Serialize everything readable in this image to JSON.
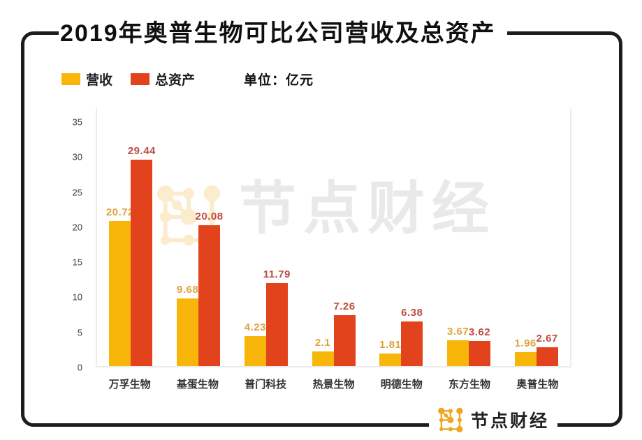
{
  "title": "2019年奥普生物可比公司营收及总资产",
  "unit_label": "单位：亿元",
  "legend": [
    {
      "label": "营收",
      "color": "#F8B60A"
    },
    {
      "label": "总资产",
      "color": "#E2431C"
    }
  ],
  "chart_data": {
    "type": "bar",
    "title": "2019年奥普生物可比公司营收及总资产",
    "unit": "亿元",
    "categories": [
      "万孚生物",
      "基蛋生物",
      "普门科技",
      "热景生物",
      "明德生物",
      "东方生物",
      "奥普生物"
    ],
    "series": [
      {
        "name": "营收",
        "key": "revenue",
        "color": "#F8B60A",
        "label_color": "#DFA33C",
        "values": [
          20.72,
          9.68,
          4.23,
          2.1,
          1.81,
          3.67,
          1.96
        ]
      },
      {
        "name": "总资产",
        "key": "total-assets",
        "color": "#E2431C",
        "label_color": "#C04B41",
        "values": [
          29.44,
          20.08,
          11.79,
          7.26,
          6.38,
          3.62,
          2.67
        ]
      }
    ],
    "xlabel": "",
    "ylabel": "",
    "yticks": [
      0,
      5,
      10,
      15,
      20,
      25,
      30,
      35
    ],
    "ylim": [
      0,
      37
    ],
    "grid": false,
    "legend_position": "top-left"
  },
  "watermark": {
    "text": "节点财经"
  },
  "footer": {
    "brand": "节点财经"
  },
  "colors": {
    "frame": "#1d1d1d",
    "axis_line": "#ececec",
    "tick_text": "#3d3d3d",
    "category_text": "#333333"
  }
}
